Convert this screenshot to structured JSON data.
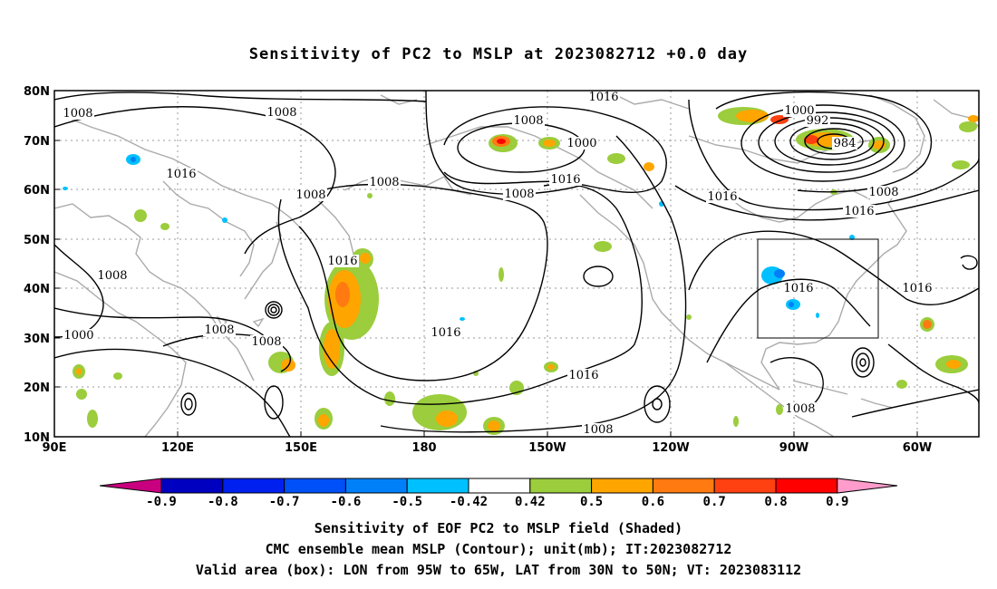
{
  "title": "Sensitivity of PC2 to MSLP at 2023082712 +0.0 day",
  "axes": {
    "lat_ticks": [
      "80N",
      "70N",
      "60N",
      "50N",
      "40N",
      "30N",
      "20N",
      "10N"
    ],
    "lon_ticks": [
      "90E",
      "120E",
      "150E",
      "180",
      "150W",
      "120W",
      "90W",
      "60W"
    ]
  },
  "contour_labels": [
    {
      "text": "1008"
    },
    {
      "text": "1008"
    },
    {
      "text": "1016"
    },
    {
      "text": "1016"
    },
    {
      "text": "1008"
    },
    {
      "text": "1000"
    },
    {
      "text": "992"
    },
    {
      "text": "984"
    },
    {
      "text": "1008"
    },
    {
      "text": "1008"
    },
    {
      "text": "1016"
    },
    {
      "text": "1008"
    },
    {
      "text": "1008"
    },
    {
      "text": "1016"
    },
    {
      "text": "1000"
    },
    {
      "text": "1016"
    },
    {
      "text": "1008"
    },
    {
      "text": "1016"
    },
    {
      "text": "1016"
    },
    {
      "text": "1016"
    },
    {
      "text": "1016"
    },
    {
      "text": "1016"
    },
    {
      "text": "1008"
    },
    {
      "text": "1008"
    },
    {
      "text": "1000"
    },
    {
      "text": "1008"
    },
    {
      "text": "1008"
    }
  ],
  "colorbar": {
    "labels": [
      "-0.9",
      "-0.8",
      "-0.7",
      "-0.6",
      "-0.5",
      "-0.42",
      "0.42",
      "0.5",
      "0.6",
      "0.7",
      "0.8",
      "0.9"
    ],
    "colors": [
      "#c8007f",
      "#0000c0",
      "#0020f0",
      "#0050f8",
      "#0080f8",
      "#00c0ff",
      "#ffffff",
      "#9bcd3c",
      "#ffa500",
      "#ff7a10",
      "#ff4010",
      "#ff0000",
      "#ff9ccc"
    ]
  },
  "valid_box": {
    "lon_min": -95,
    "lon_max": -65,
    "lat_min": 30,
    "lat_max": 50
  },
  "footer": {
    "line1": "Sensitivity of EOF PC2 to MSLP field (Shaded)",
    "line2": "CMC ensemble mean MSLP (Contour); unit(mb); IT:2023082712",
    "line3": "Valid area (box): LON from 95W to 65W, LAT from 30N to 50N; VT: 2023083112"
  }
}
